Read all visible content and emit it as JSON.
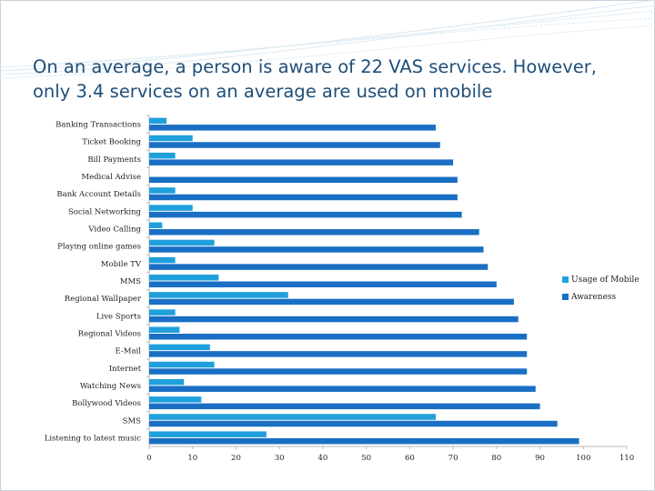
{
  "slide": {
    "title_line1": "On an average, a person is aware of 22 VAS services. However,",
    "title_line2": "only 3.4 services on an average are used  on mobile"
  },
  "chart_data": {
    "type": "bar",
    "orientation": "horizontal",
    "categories": [
      "Banking Transactions",
      "Ticket Booking",
      "Bill Payments",
      "Medical Advise",
      "Bank Account Details",
      "Social Networking",
      "Video Calling",
      "Playing online games",
      "Mobile TV",
      "MMS",
      "Regional Wallpaper",
      "Live Sports",
      "Regional Videos",
      "E-Mail",
      "Internet",
      "Watching News",
      "Bollywood Videos",
      "SMS",
      "Listening to latest music"
    ],
    "series": [
      {
        "name": "Usage of Mobile",
        "color": "#1fa0dc",
        "values": [
          4,
          10,
          6,
          0,
          6,
          10,
          3,
          15,
          6,
          16,
          32,
          6,
          7,
          14,
          15,
          8,
          12,
          66,
          27
        ]
      },
      {
        "name": "Awareness",
        "color": "#1a6fc4",
        "values": [
          66,
          67,
          70,
          71,
          71,
          72,
          76,
          77,
          78,
          80,
          84,
          85,
          87,
          87,
          87,
          89,
          90,
          94,
          99
        ]
      }
    ],
    "xlim": [
      0,
      110
    ],
    "xticks": [
      "0",
      "10",
      "20",
      "30",
      "40",
      "50",
      "60",
      "70",
      "80",
      "90",
      "100",
      "110"
    ],
    "grid": false,
    "legend_position": "right"
  }
}
